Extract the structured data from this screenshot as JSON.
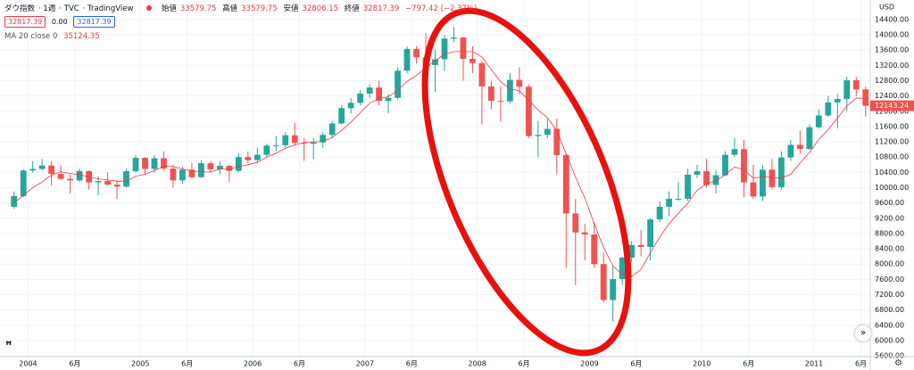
{
  "header": {
    "symbol": "ダウ指数",
    "interval": "1週",
    "exchange": "TVC",
    "source": "TradingView",
    "ohlc": [
      {
        "label": "始値",
        "value": 33579.75
      },
      {
        "label": "高値",
        "value": 33579.75
      },
      {
        "label": "安値",
        "value": 32806.15
      },
      {
        "label": "終値",
        "value": 32817.39
      }
    ],
    "change": "−797.42 (−2.37%)",
    "sell": 32817.39,
    "spread": "0.00",
    "buy": 32817.39
  },
  "chart_data": {
    "type": "candlestick",
    "currency": "USD",
    "grid": true,
    "up_color": "#26a69a",
    "down_color": "#ef5350",
    "x": [
      "2003-11",
      "2003-12",
      "2004-01",
      "2004-02",
      "2004-03",
      "2004-04",
      "2004-05",
      "2004-06",
      "2004-07",
      "2004-08",
      "2004-09",
      "2004-10",
      "2004-11",
      "2004-12",
      "2005-01",
      "2005-02",
      "2005-03",
      "2005-04",
      "2005-05",
      "2005-06",
      "2005-07",
      "2005-08",
      "2005-09",
      "2005-10",
      "2005-11",
      "2005-12",
      "2006-01",
      "2006-02",
      "2006-03",
      "2006-04",
      "2006-05",
      "2006-06",
      "2006-07",
      "2006-08",
      "2006-09",
      "2006-10",
      "2006-11",
      "2006-12",
      "2007-01",
      "2007-02",
      "2007-03",
      "2007-04",
      "2007-05",
      "2007-06",
      "2007-07",
      "2007-08",
      "2007-09",
      "2007-10",
      "2007-11",
      "2007-12",
      "2008-01",
      "2008-02",
      "2008-03",
      "2008-04",
      "2008-05",
      "2008-06",
      "2008-07",
      "2008-08",
      "2008-09",
      "2008-10",
      "2008-11",
      "2008-12",
      "2009-01",
      "2009-02",
      "2009-03",
      "2009-04",
      "2009-05",
      "2009-06",
      "2009-07",
      "2009-08",
      "2009-09",
      "2009-10",
      "2009-11",
      "2009-12",
      "2010-01",
      "2010-02",
      "2010-03",
      "2010-04",
      "2010-05",
      "2010-06",
      "2010-07",
      "2010-08",
      "2010-09",
      "2010-10",
      "2010-11",
      "2010-12",
      "2011-01",
      "2011-02",
      "2011-03",
      "2011-04",
      "2011-05",
      "2011-06"
    ],
    "open": [
      9500,
      9780,
      10450,
      10490,
      10580,
      10360,
      10230,
      10190,
      10435,
      10140,
      10175,
      10080,
      10030,
      10430,
      10780,
      10490,
      10770,
      10500,
      10190,
      10470,
      10275,
      10640,
      10480,
      10570,
      10440,
      10800,
      10720,
      10860,
      11100,
      11110,
      11370,
      11170,
      11150,
      11185,
      11380,
      11680,
      12080,
      12220,
      12460,
      12620,
      12270,
      12350,
      13060,
      13630,
      13410,
      13210,
      13360,
      13900,
      13930,
      13370,
      13260,
      12650,
      12270,
      12260,
      12820,
      12640,
      11350,
      11380,
      11540,
      10850,
      9325,
      8830,
      8776,
      8000,
      7060,
      7610,
      8170,
      8500,
      8450,
      9170,
      9500,
      9710,
      9710,
      10340,
      10430,
      10070,
      10325,
      10860,
      11010,
      10140,
      9770,
      10470,
      10015,
      10790,
      11120,
      11010,
      11580,
      11890,
      12230,
      12320,
      12810,
      12570
    ],
    "high": [
      9900,
      10480,
      10700,
      10750,
      10700,
      10580,
      10350,
      10500,
      10450,
      10300,
      10400,
      10200,
      10500,
      10850,
      10800,
      10850,
      10950,
      10600,
      10550,
      10650,
      10720,
      10700,
      10700,
      10600,
      10900,
      10950,
      11050,
      11150,
      11350,
      11450,
      11700,
      11300,
      11300,
      11450,
      11750,
      12150,
      12350,
      12550,
      12700,
      12800,
      12450,
      13150,
      13700,
      13700,
      14050,
      13600,
      14000,
      14200,
      13950,
      13700,
      13300,
      12800,
      12650,
      13000,
      13150,
      12700,
      11750,
      11800,
      11800,
      10900,
      9700,
      9050,
      9100,
      8300,
      7950,
      8200,
      8600,
      8900,
      9200,
      9650,
      9900,
      10150,
      10500,
      10600,
      10750,
      10450,
      10950,
      11300,
      11250,
      10600,
      10600,
      10750,
      10950,
      11250,
      11500,
      11650,
      12050,
      12400,
      12450,
      12900,
      12900,
      12650
    ],
    "low": [
      9450,
      9750,
      10400,
      10450,
      10050,
      10200,
      9850,
      10150,
      9950,
      9800,
      10050,
      9700,
      10000,
      10400,
      10350,
      10400,
      10450,
      10000,
      10100,
      10250,
      10250,
      10400,
      10350,
      10150,
      10400,
      10650,
      10650,
      10800,
      10950,
      11050,
      11100,
      10700,
      10750,
      11050,
      11300,
      11650,
      11950,
      12150,
      12350,
      12150,
      11950,
      12300,
      13000,
      13250,
      13200,
      12500,
      13050,
      13800,
      12800,
      13000,
      11650,
      12050,
      11730,
      12200,
      12450,
      11300,
      10800,
      11300,
      10350,
      7900,
      7450,
      8100,
      7900,
      7000,
      6500,
      7450,
      8050,
      8200,
      8100,
      9100,
      9250,
      9650,
      9650,
      10250,
      10000,
      9850,
      10300,
      10800,
      9750,
      9700,
      9650,
      9950,
      9950,
      10700,
      10900,
      11000,
      11550,
      11850,
      11550,
      12000,
      12400,
      11860
    ],
    "close": [
      9780,
      10450,
      10490,
      10580,
      10360,
      10230,
      10190,
      10435,
      10140,
      10175,
      10080,
      10030,
      10430,
      10780,
      10490,
      10770,
      10500,
      10190,
      10470,
      10275,
      10640,
      10480,
      10570,
      10440,
      10800,
      10720,
      10860,
      11100,
      11110,
      11370,
      11170,
      11150,
      11185,
      11380,
      11680,
      12080,
      12220,
      12460,
      12620,
      12270,
      12350,
      13060,
      13630,
      13410,
      13210,
      13360,
      13900,
      13930,
      13370,
      13260,
      12650,
      12270,
      12260,
      12820,
      12640,
      11350,
      11380,
      11540,
      10850,
      9325,
      8830,
      8776,
      8000,
      7060,
      7610,
      8170,
      8500,
      8450,
      9170,
      9500,
      9710,
      9710,
      10340,
      10430,
      10070,
      10325,
      10860,
      11010,
      10140,
      9770,
      10470,
      10015,
      10790,
      11120,
      11010,
      11580,
      11890,
      12230,
      12320,
      12810,
      12570,
      12143.24
    ],
    "overlays": [
      {
        "name": "MA 20 close 0",
        "color": "#f23645",
        "last_value": 35124.35,
        "values": [
          9600,
          9800,
          10000,
          10150,
          10330,
          10420,
          10370,
          10340,
          10280,
          10230,
          10200,
          10170,
          10170,
          10300,
          10350,
          10450,
          10560,
          10550,
          10490,
          10440,
          10410,
          10410,
          10490,
          10480,
          10550,
          10600,
          10660,
          10800,
          10900,
          11030,
          11120,
          11180,
          11200,
          11210,
          11310,
          11500,
          11710,
          11960,
          12210,
          12330,
          12380,
          12540,
          12780,
          12940,
          13140,
          13320,
          13500,
          13560,
          13560,
          13560,
          13420,
          13090,
          12770,
          12590,
          12530,
          12290,
          12030,
          11830,
          11490,
          10880,
          10280,
          9730,
          9060,
          8440,
          7950,
          7730,
          7680,
          7860,
          8300,
          8710,
          9060,
          9330,
          9600,
          9930,
          10100,
          10180,
          10340,
          10540,
          10470,
          10250,
          10280,
          10270,
          10250,
          10350,
          10650,
          10920,
          11260,
          11520,
          11820,
          12140,
          12350,
          12330
        ]
      }
    ],
    "xlim": [
      "2003-10",
      "2011-07"
    ],
    "xticks": [
      {
        "value": "2004-01",
        "label": "2004"
      },
      {
        "value": "2004-06",
        "label": "6月"
      },
      {
        "value": "2005-01",
        "label": "2005"
      },
      {
        "value": "2005-06",
        "label": "6月"
      },
      {
        "value": "2006-01",
        "label": "2006"
      },
      {
        "value": "2006-06",
        "label": "6月"
      },
      {
        "value": "2007-01",
        "label": "2007"
      },
      {
        "value": "2007-06",
        "label": "6月"
      },
      {
        "value": "2008-01",
        "label": "2008"
      },
      {
        "value": "2008-06",
        "label": "6月"
      },
      {
        "value": "2009-01",
        "label": "2009"
      },
      {
        "value": "2009-06",
        "label": "6月"
      },
      {
        "value": "2010-01",
        "label": "2010"
      },
      {
        "value": "2010-06",
        "label": "6月"
      },
      {
        "value": "2011-01",
        "label": "2011"
      },
      {
        "value": "2011-06",
        "label": "6月"
      }
    ],
    "ylim": [
      5580,
      14910
    ],
    "yticks": [
      {
        "value": 5600,
        "label": "5600.00"
      },
      {
        "value": 6000,
        "label": "6000.00"
      },
      {
        "value": 6400,
        "label": "6400.00"
      },
      {
        "value": 6800,
        "label": "6800.00"
      },
      {
        "value": 7200,
        "label": "7200.00"
      },
      {
        "value": 7600,
        "label": "7600.00"
      },
      {
        "value": 8000,
        "label": "8000.00"
      },
      {
        "value": 8400,
        "label": "8400.00"
      },
      {
        "value": 8800,
        "label": "8800.00"
      },
      {
        "value": 9200,
        "label": "9200.00"
      },
      {
        "value": 9600,
        "label": "9600.00"
      },
      {
        "value": 10000,
        "label": "10000.00"
      },
      {
        "value": 10400,
        "label": "10400.00"
      },
      {
        "value": 10800,
        "label": "10800.00"
      },
      {
        "value": 11200,
        "label": "11200.00"
      },
      {
        "value": 11600,
        "label": "11600.00"
      },
      {
        "value": 12000,
        "label": "12000.00"
      },
      {
        "value": 12400,
        "label": "12400.00"
      },
      {
        "value": 12800,
        "label": "12800.00"
      },
      {
        "value": 13200,
        "label": "13200.00"
      },
      {
        "value": 13600,
        "label": "13600.00"
      },
      {
        "value": 14000,
        "label": "14000.00"
      },
      {
        "value": 14400,
        "label": "14400.00"
      }
    ]
  }
}
